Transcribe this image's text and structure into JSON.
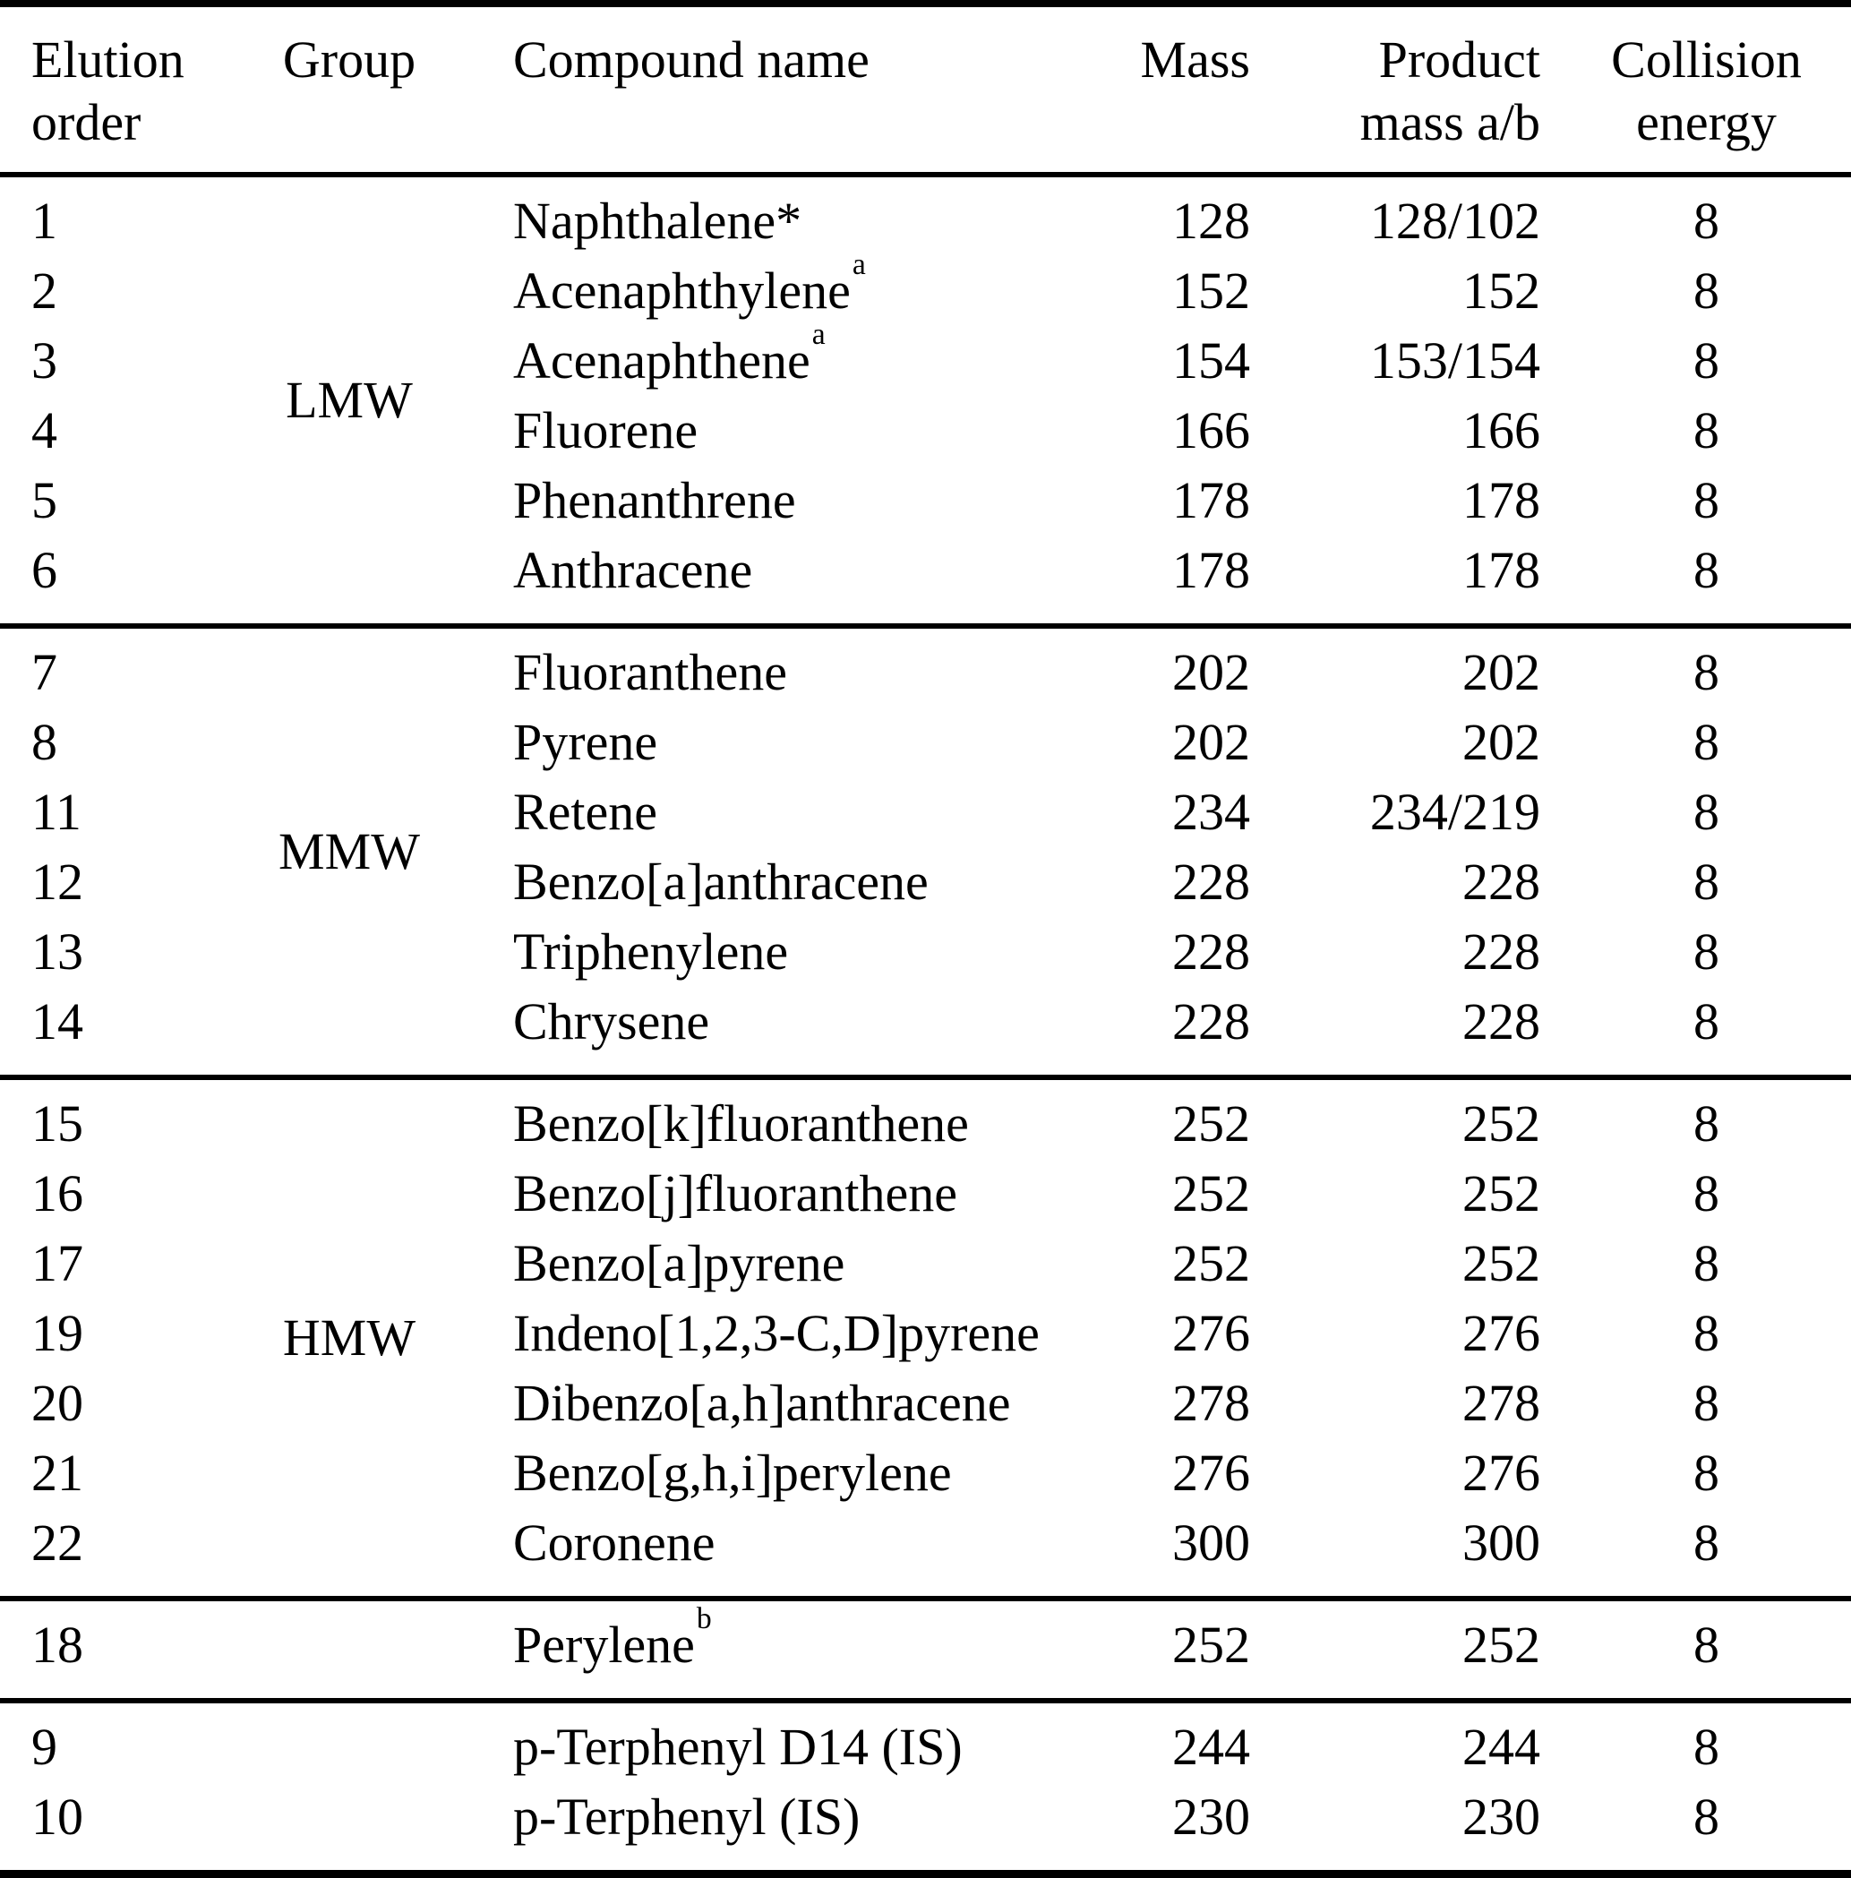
{
  "colors": {
    "text": "#000000",
    "background": "#ffffff",
    "rule": "#000000"
  },
  "table": {
    "columns": [
      {
        "id": "elution",
        "label": "Elution order",
        "label_lines": [
          "Elution",
          "order"
        ]
      },
      {
        "id": "group",
        "label": "Group",
        "label_lines": [
          "Group"
        ]
      },
      {
        "id": "compound",
        "label": "Compound name",
        "label_lines": [
          "Compound name"
        ]
      },
      {
        "id": "mass",
        "label": "Mass",
        "label_lines": [
          "Mass"
        ]
      },
      {
        "id": "product",
        "label": "Product mass a/b",
        "label_lines": [
          "Product",
          "mass a/b"
        ]
      },
      {
        "id": "energy",
        "label": "Collision energy",
        "label_lines": [
          "Collision",
          "energy"
        ]
      }
    ],
    "sections": [
      {
        "group": "LMW",
        "rows": [
          {
            "order": "1",
            "compound": "Naphthalene*",
            "sup": "",
            "mass": "128",
            "product": "128/102",
            "energy": "8"
          },
          {
            "order": "2",
            "compound": "Acenaphthylene",
            "sup": "a",
            "mass": "152",
            "product": "152",
            "energy": "8"
          },
          {
            "order": "3",
            "compound": "Acenaphthene",
            "sup": "a",
            "mass": "154",
            "product": "153/154",
            "energy": "8"
          },
          {
            "order": "4",
            "compound": "Fluorene",
            "sup": "",
            "mass": "166",
            "product": "166",
            "energy": "8"
          },
          {
            "order": "5",
            "compound": "Phenanthrene",
            "sup": "",
            "mass": "178",
            "product": "178",
            "energy": "8"
          },
          {
            "order": "6",
            "compound": "Anthracene",
            "sup": "",
            "mass": "178",
            "product": "178",
            "energy": "8"
          }
        ]
      },
      {
        "group": "MMW",
        "rows": [
          {
            "order": "7",
            "compound": "Fluoranthene",
            "sup": "",
            "mass": "202",
            "product": "202",
            "energy": "8"
          },
          {
            "order": "8",
            "compound": "Pyrene",
            "sup": "",
            "mass": "202",
            "product": "202",
            "energy": "8"
          },
          {
            "order": "11",
            "compound": "Retene",
            "sup": "",
            "mass": "234",
            "product": "234/219",
            "energy": "8"
          },
          {
            "order": "12",
            "compound": "Benzo[a]anthracene",
            "sup": "",
            "mass": "228",
            "product": "228",
            "energy": "8"
          },
          {
            "order": "13",
            "compound": "Triphenylene",
            "sup": "",
            "mass": "228",
            "product": "228",
            "energy": "8"
          },
          {
            "order": "14",
            "compound": "Chrysene",
            "sup": "",
            "mass": "228",
            "product": "228",
            "energy": "8"
          }
        ]
      },
      {
        "group": "HMW",
        "rows": [
          {
            "order": "15",
            "compound": "Benzo[k]fluoranthene",
            "sup": "",
            "mass": "252",
            "product": "252",
            "energy": "8"
          },
          {
            "order": "16",
            "compound": "Benzo[j]fluoranthene",
            "sup": "",
            "mass": "252",
            "product": "252",
            "energy": "8"
          },
          {
            "order": "17",
            "compound": "Benzo[a]pyrene",
            "sup": "",
            "mass": "252",
            "product": "252",
            "energy": "8"
          },
          {
            "order": "19",
            "compound": "Indeno[1,2,3-C,D]pyrene",
            "sup": "",
            "mass": "276",
            "product": "276",
            "energy": "8"
          },
          {
            "order": "20",
            "compound": "Dibenzo[a,h]anthracene",
            "sup": "",
            "mass": "278",
            "product": "278",
            "energy": "8"
          },
          {
            "order": "21",
            "compound": "Benzo[g,h,i]perylene",
            "sup": "",
            "mass": "276",
            "product": "276",
            "energy": "8"
          },
          {
            "order": "22",
            "compound": "Coronene",
            "sup": "",
            "mass": "300",
            "product": "300",
            "energy": "8"
          }
        ]
      },
      {
        "group": "",
        "rows": [
          {
            "order": "18",
            "compound": "Perylene",
            "sup": "b",
            "mass": "252",
            "product": "252",
            "energy": "8"
          }
        ]
      },
      {
        "group": "",
        "rows": [
          {
            "order": "9",
            "compound": "p-Terphenyl D14 (IS)",
            "sup": "",
            "mass": "244",
            "product": "244",
            "energy": "8"
          },
          {
            "order": "10",
            "compound": "p-Terphenyl (IS)",
            "sup": "",
            "mass": "230",
            "product": "230",
            "energy": "8"
          }
        ]
      }
    ]
  }
}
